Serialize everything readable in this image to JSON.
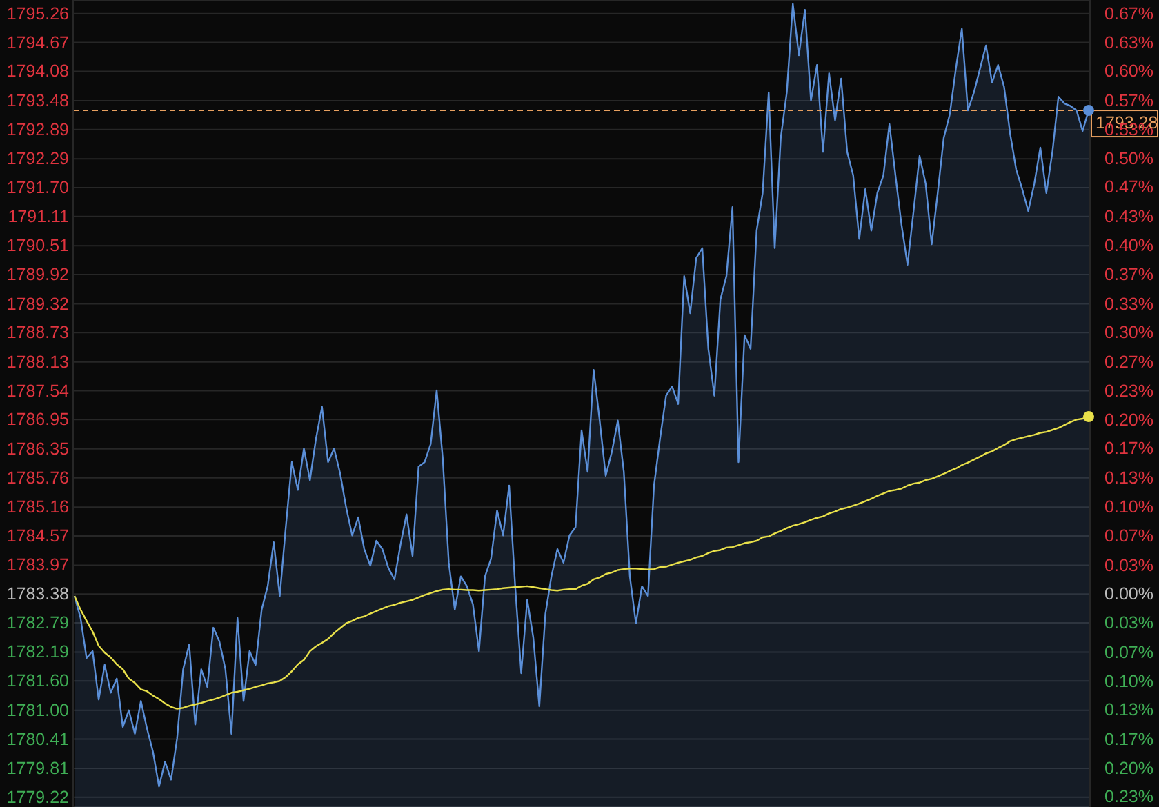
{
  "chart_data": {
    "type": "area",
    "categories": [
      null,
      null,
      null,
      null,
      null,
      null,
      null,
      null,
      null,
      null,
      null,
      null,
      null,
      null,
      null,
      null,
      null,
      null,
      null,
      null,
      null,
      null,
      null,
      null,
      null,
      null,
      null,
      null,
      null,
      null,
      null,
      null,
      null,
      null,
      null,
      null,
      null,
      null,
      null,
      null,
      null,
      null,
      null,
      null,
      null,
      null,
      null,
      null,
      null,
      null,
      null,
      null,
      null,
      null,
      null,
      null,
      null,
      null,
      null,
      null,
      null,
      null,
      null,
      null,
      null,
      null,
      null,
      null,
      null,
      null,
      null,
      null,
      null,
      null,
      null,
      null,
      null,
      null,
      null,
      null,
      null,
      null,
      null,
      null,
      null,
      null,
      null,
      null,
      null,
      null,
      null,
      null,
      null,
      null,
      null,
      null,
      null,
      null,
      null,
      null,
      null,
      null,
      null,
      null,
      null,
      null,
      null,
      null,
      null,
      null,
      null,
      null,
      null,
      null,
      null,
      null,
      null,
      null,
      null,
      null,
      null,
      null,
      null,
      null,
      null,
      null,
      null,
      null,
      null,
      null,
      null,
      null,
      null,
      null,
      null,
      null,
      null,
      null,
      null,
      null,
      null,
      null,
      null,
      null,
      null,
      null,
      null,
      null,
      null,
      null,
      null,
      null,
      null,
      null,
      null,
      null,
      null,
      null,
      null,
      null,
      null,
      null,
      null,
      null,
      null,
      null,
      null,
      null,
      null
    ],
    "ylim": [
      1779.02,
      1795.54
    ],
    "yticks": [
      {
        "value": 1795.26,
        "label": "1795.26"
      },
      {
        "value": 1794.67,
        "label": "1794.67"
      },
      {
        "value": 1794.08,
        "label": "1794.08"
      },
      {
        "value": 1793.48,
        "label": "1793.48"
      },
      {
        "value": 1792.89,
        "label": "1792.89"
      },
      {
        "value": 1792.29,
        "label": "1792.29"
      },
      {
        "value": 1791.7,
        "label": "1791.70"
      },
      {
        "value": 1791.11,
        "label": "1791.11"
      },
      {
        "value": 1790.51,
        "label": "1790.51"
      },
      {
        "value": 1789.92,
        "label": "1789.92"
      },
      {
        "value": 1789.32,
        "label": "1789.32"
      },
      {
        "value": 1788.73,
        "label": "1788.73"
      },
      {
        "value": 1788.13,
        "label": "1788.13"
      },
      {
        "value": 1787.54,
        "label": "1787.54"
      },
      {
        "value": 1786.95,
        "label": "1786.95"
      },
      {
        "value": 1786.35,
        "label": "1786.35"
      },
      {
        "value": 1785.76,
        "label": "1785.76"
      },
      {
        "value": 1785.16,
        "label": "1785.16"
      },
      {
        "value": 1784.57,
        "label": "1784.57"
      },
      {
        "value": 1783.97,
        "label": "1783.97"
      },
      {
        "value": 1783.38,
        "label": "1783.38"
      },
      {
        "value": 1782.79,
        "label": "1782.79"
      },
      {
        "value": 1782.19,
        "label": "1782.19"
      },
      {
        "value": 1781.6,
        "label": "1781.60"
      },
      {
        "value": 1781.0,
        "label": "1781.00"
      },
      {
        "value": 1780.41,
        "label": "1780.41"
      },
      {
        "value": 1779.81,
        "label": "1779.81"
      },
      {
        "value": 1779.22,
        "label": "1779.22"
      }
    ],
    "y2lim": [
      -0.2445,
      0.6819
    ],
    "y2ticks": [
      {
        "value": 0.666,
        "label": "0.67%"
      },
      {
        "value": 0.633,
        "label": "0.63%"
      },
      {
        "value": 0.6,
        "label": "0.60%"
      },
      {
        "value": 0.566,
        "label": "0.57%"
      },
      {
        "value": 0.533,
        "label": "0.53%"
      },
      {
        "value": 0.5,
        "label": "0.50%"
      },
      {
        "value": 0.467,
        "label": "0.47%"
      },
      {
        "value": 0.433,
        "label": "0.43%"
      },
      {
        "value": 0.4,
        "label": "0.40%"
      },
      {
        "value": 0.367,
        "label": "0.37%"
      },
      {
        "value": 0.333,
        "label": "0.33%"
      },
      {
        "value": 0.3,
        "label": "0.30%"
      },
      {
        "value": 0.266,
        "label": "0.27%"
      },
      {
        "value": 0.233,
        "label": "0.23%"
      },
      {
        "value": 0.2,
        "label": "0.20%"
      },
      {
        "value": 0.167,
        "label": "0.17%"
      },
      {
        "value": 0.133,
        "label": "0.13%"
      },
      {
        "value": 0.1,
        "label": "0.10%"
      },
      {
        "value": 0.067,
        "label": "0.07%"
      },
      {
        "value": 0.033,
        "label": "0.03%"
      },
      {
        "value": 0,
        "label": "0.00%"
      },
      {
        "value": -0.033,
        "label": "0.03%"
      },
      {
        "value": -0.067,
        "label": "0.07%"
      },
      {
        "value": -0.1,
        "label": "0.10%"
      },
      {
        "value": -0.133,
        "label": "0.13%"
      },
      {
        "value": -0.167,
        "label": "0.17%"
      },
      {
        "value": -0.2,
        "label": "0.20%"
      },
      {
        "value": -0.233,
        "label": "0.23%"
      }
    ],
    "tick_labels": "y",
    "grid": "y",
    "ref_lines": [
      {
        "axis": "y",
        "value": 1793.28,
        "label": "1793.28",
        "color": "#e8a060",
        "line_style": "dashed"
      }
    ],
    "series": [
      {
        "color": "#5b8fd8",
        "values": [
          1783.34,
          1782.89,
          1782.07,
          1782.21,
          1781.22,
          1781.93,
          1781.36,
          1781.65,
          1780.66,
          1781.0,
          1780.52,
          1781.19,
          1780.63,
          1780.15,
          1779.44,
          1779.95,
          1779.58,
          1780.43,
          1781.84,
          1782.35,
          1780.71,
          1781.84,
          1781.48,
          1782.69,
          1782.41,
          1781.84,
          1780.52,
          1782.89,
          1781.19,
          1782.21,
          1781.93,
          1783.06,
          1783.54,
          1784.44,
          1783.34,
          1784.75,
          1786.08,
          1785.51,
          1786.36,
          1785.71,
          1786.56,
          1787.21,
          1786.08,
          1786.36,
          1785.85,
          1785.15,
          1784.58,
          1784.95,
          1784.3,
          1783.96,
          1784.47,
          1784.3,
          1783.91,
          1783.68,
          1784.39,
          1785.01,
          1784.16,
          1785.99,
          1786.08,
          1786.45,
          1787.55,
          1786.16,
          1784.02,
          1783.06,
          1783.74,
          1783.54,
          1783.17,
          1782.21,
          1783.74,
          1784.1,
          1785.09,
          1784.58,
          1785.6,
          1783.54,
          1781.76,
          1783.26,
          1782.49,
          1781.08,
          1782.97,
          1783.74,
          1784.3,
          1784.02,
          1784.58,
          1784.75,
          1786.73,
          1785.88,
          1787.97,
          1786.93,
          1785.8,
          1786.28,
          1786.93,
          1785.88,
          1783.74,
          1782.78,
          1783.54,
          1783.34,
          1785.6,
          1786.56,
          1787.44,
          1787.63,
          1787.27,
          1789.89,
          1789.13,
          1790.26,
          1790.46,
          1788.4,
          1787.44,
          1789.41,
          1789.89,
          1791.3,
          1786.08,
          1788.68,
          1788.4,
          1790.82,
          1791.59,
          1793.65,
          1790.46,
          1792.72,
          1793.65,
          1795.46,
          1794.41,
          1795.34,
          1793.48,
          1794.21,
          1792.43,
          1794.04,
          1793.08,
          1793.93,
          1792.43,
          1791.95,
          1790.65,
          1791.67,
          1790.82,
          1791.59,
          1791.95,
          1793.0,
          1791.95,
          1790.94,
          1790.12,
          1791.22,
          1792.35,
          1791.78,
          1790.54,
          1791.59,
          1792.72,
          1793.2,
          1794.13,
          1794.95,
          1793.28,
          1793.65,
          1794.13,
          1794.61,
          1793.85,
          1794.21,
          1793.76,
          1792.8,
          1792.07,
          1791.67,
          1791.22,
          1791.78,
          1792.52,
          1791.59,
          1792.43,
          1793.56,
          1793.42,
          1793.37,
          1793.28,
          1792.86,
          1793.28
        ]
      },
      {
        "type": "line",
        "color": "#e8e04a",
        "values": [
          1783.34,
          1783.06,
          1782.83,
          1782.61,
          1782.32,
          1782.18,
          1782.08,
          1781.94,
          1781.84,
          1781.65,
          1781.56,
          1781.43,
          1781.39,
          1781.3,
          1781.23,
          1781.14,
          1781.07,
          1781.03,
          1781.05,
          1781.09,
          1781.12,
          1781.15,
          1781.19,
          1781.22,
          1781.26,
          1781.31,
          1781.36,
          1781.38,
          1781.41,
          1781.44,
          1781.48,
          1781.51,
          1781.55,
          1781.57,
          1781.6,
          1781.68,
          1781.8,
          1781.94,
          1782.03,
          1782.21,
          1782.31,
          1782.38,
          1782.46,
          1782.58,
          1782.68,
          1782.78,
          1782.83,
          1782.89,
          1782.92,
          1782.98,
          1783.03,
          1783.08,
          1783.13,
          1783.16,
          1783.2,
          1783.23,
          1783.26,
          1783.31,
          1783.36,
          1783.4,
          1783.44,
          1783.47,
          1783.48,
          1783.47,
          1783.47,
          1783.46,
          1783.46,
          1783.45,
          1783.46,
          1783.47,
          1783.48,
          1783.5,
          1783.51,
          1783.52,
          1783.53,
          1783.54,
          1783.52,
          1783.5,
          1783.48,
          1783.46,
          1783.45,
          1783.47,
          1783.48,
          1783.48,
          1783.55,
          1783.59,
          1783.68,
          1783.72,
          1783.79,
          1783.82,
          1783.87,
          1783.89,
          1783.9,
          1783.9,
          1783.89,
          1783.88,
          1783.89,
          1783.93,
          1783.94,
          1783.98,
          1784.02,
          1784.05,
          1784.08,
          1784.13,
          1784.16,
          1784.22,
          1784.26,
          1784.28,
          1784.33,
          1784.34,
          1784.38,
          1784.42,
          1784.44,
          1784.47,
          1784.54,
          1784.56,
          1784.62,
          1784.67,
          1784.73,
          1784.78,
          1784.81,
          1784.85,
          1784.9,
          1784.94,
          1784.97,
          1785.03,
          1785.07,
          1785.12,
          1785.15,
          1785.19,
          1785.23,
          1785.28,
          1785.33,
          1785.39,
          1785.44,
          1785.49,
          1785.51,
          1785.54,
          1785.6,
          1785.64,
          1785.66,
          1785.71,
          1785.74,
          1785.79,
          1785.84,
          1785.9,
          1785.95,
          1786.02,
          1786.07,
          1786.13,
          1786.19,
          1786.26,
          1786.3,
          1786.37,
          1786.43,
          1786.51,
          1786.55,
          1786.58,
          1786.61,
          1786.64,
          1786.68,
          1786.7,
          1786.74,
          1786.78,
          1786.84,
          1786.9,
          1786.95,
          1786.97,
          1787.01
        ]
      }
    ]
  }
}
